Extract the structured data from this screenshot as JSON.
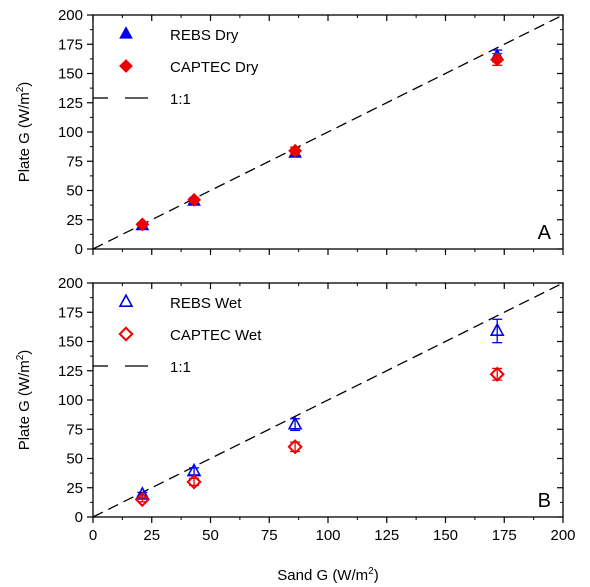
{
  "chart_data": [
    {
      "type": "scatter",
      "panel_label": "A",
      "xlabel": "Sand G (W/m",
      "xlabel_sup": "2",
      "xlabel_end": ")",
      "ylabel": "Plate G (W/m",
      "ylabel_sup": "2",
      "ylabel_end": ")",
      "xlim": [
        0,
        200
      ],
      "ylim": [
        0,
        200
      ],
      "x_ticks": [
        "0",
        "25",
        "50",
        "75",
        "100",
        "125",
        "150",
        "175",
        "200"
      ],
      "y_ticks": [
        "0",
        "25",
        "50",
        "75",
        "100",
        "125",
        "150",
        "175",
        "200"
      ],
      "grid": false,
      "legend_position": "top-left",
      "colors": {
        "blue": "#0000ee",
        "red": "#ee0000"
      },
      "series": [
        {
          "name": "REBS Dry",
          "marker": "filled-triangle",
          "color": "#0000ee",
          "x": [
            21,
            43,
            86,
            172
          ],
          "y": [
            20,
            41,
            82,
            165
          ],
          "err": [
            1.5,
            2,
            3,
            5
          ]
        },
        {
          "name": "CAPTEC Dry",
          "marker": "filled-diamond",
          "color": "#ee0000",
          "x": [
            21,
            43,
            86,
            172
          ],
          "y": [
            21,
            42,
            84,
            162
          ],
          "err": [
            1.5,
            2,
            3,
            5
          ]
        }
      ],
      "reference_line": {
        "name": "1:1",
        "style": "dashed"
      }
    },
    {
      "type": "scatter",
      "panel_label": "B",
      "xlabel": "Sand G (W/m",
      "xlabel_sup": "2",
      "xlabel_end": ")",
      "ylabel": "Plate G (W/m",
      "ylabel_sup": "2",
      "ylabel_end": ")",
      "xlim": [
        0,
        200
      ],
      "ylim": [
        0,
        200
      ],
      "x_ticks": [
        "0",
        "25",
        "50",
        "75",
        "100",
        "125",
        "150",
        "175",
        "200"
      ],
      "y_ticks": [
        "0",
        "25",
        "50",
        "75",
        "100",
        "125",
        "150",
        "175",
        "200"
      ],
      "grid": false,
      "legend_position": "top-left",
      "colors": {
        "blue": "#0000ee",
        "red": "#ee0000"
      },
      "series": [
        {
          "name": "REBS Wet",
          "marker": "open-triangle",
          "color": "#0000ee",
          "x": [
            21,
            43,
            86,
            172
          ],
          "y": [
            19,
            39,
            79,
            159
          ],
          "err": [
            2,
            3,
            5,
            10
          ]
        },
        {
          "name": "CAPTEC Wet",
          "marker": "open-diamond",
          "color": "#ee0000",
          "x": [
            21,
            43,
            86,
            172
          ],
          "y": [
            15,
            30,
            60,
            122
          ],
          "err": [
            2,
            3,
            4,
            5
          ]
        }
      ],
      "reference_line": {
        "name": "1:1",
        "style": "dashed"
      }
    }
  ]
}
